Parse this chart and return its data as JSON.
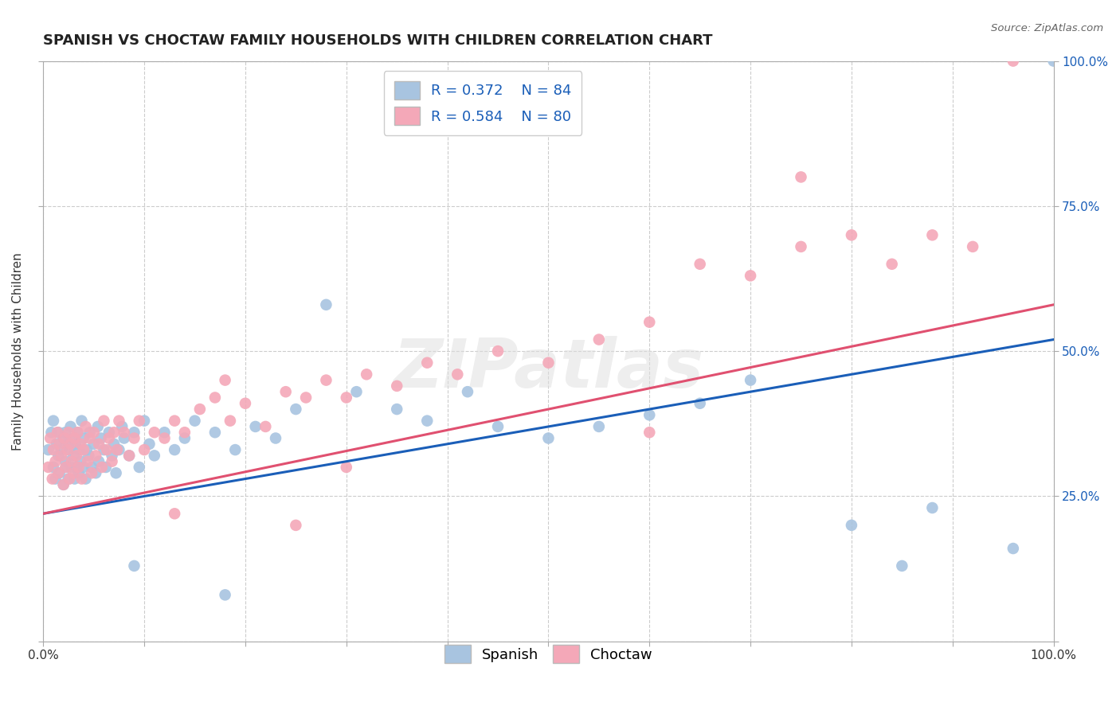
{
  "title": "SPANISH VS CHOCTAW FAMILY HOUSEHOLDS WITH CHILDREN CORRELATION CHART",
  "source": "Source: ZipAtlas.com",
  "watermark": "ZIPatlas",
  "ylabel": "Family Households with Children",
  "xlim": [
    0.0,
    1.0
  ],
  "ylim": [
    0.0,
    1.0
  ],
  "xticks": [
    0.0,
    0.1,
    0.2,
    0.3,
    0.4,
    0.5,
    0.6,
    0.7,
    0.8,
    0.9,
    1.0
  ],
  "yticks": [
    0.0,
    0.25,
    0.5,
    0.75,
    1.0
  ],
  "xtick_labels": [
    "0.0%",
    "",
    "",
    "",
    "",
    "",
    "",
    "",
    "",
    "",
    "100.0%"
  ],
  "ytick_labels_right": [
    "",
    "25.0%",
    "50.0%",
    "75.0%",
    "100.0%"
  ],
  "spanish_R": 0.372,
  "spanish_N": 84,
  "choctaw_R": 0.584,
  "choctaw_N": 80,
  "spanish_color": "#a8c4e0",
  "choctaw_color": "#f4a8b8",
  "spanish_line_color": "#1a5eb8",
  "choctaw_line_color": "#e05070",
  "background_color": "#ffffff",
  "grid_color": "#cccccc",
  "title_fontsize": 13,
  "axis_label_fontsize": 11,
  "tick_fontsize": 11,
  "legend_fontsize": 13,
  "spanish_line_x0": 0.0,
  "spanish_line_y0": 0.22,
  "spanish_line_x1": 1.0,
  "spanish_line_y1": 0.52,
  "choctaw_line_x0": 0.0,
  "choctaw_line_y0": 0.22,
  "choctaw_line_x1": 1.0,
  "choctaw_line_y1": 0.58,
  "spanish_x": [
    0.005,
    0.008,
    0.01,
    0.01,
    0.012,
    0.013,
    0.015,
    0.015,
    0.016,
    0.018,
    0.02,
    0.02,
    0.022,
    0.022,
    0.023,
    0.025,
    0.025,
    0.026,
    0.027,
    0.028,
    0.03,
    0.03,
    0.031,
    0.032,
    0.033,
    0.034,
    0.035,
    0.036,
    0.037,
    0.038,
    0.04,
    0.04,
    0.042,
    0.043,
    0.045,
    0.046,
    0.048,
    0.05,
    0.052,
    0.054,
    0.055,
    0.057,
    0.06,
    0.062,
    0.065,
    0.068,
    0.07,
    0.072,
    0.075,
    0.078,
    0.08,
    0.085,
    0.09,
    0.095,
    0.1,
    0.105,
    0.11,
    0.12,
    0.13,
    0.14,
    0.15,
    0.17,
    0.19,
    0.21,
    0.23,
    0.25,
    0.28,
    0.31,
    0.35,
    0.38,
    0.42,
    0.45,
    0.5,
    0.55,
    0.6,
    0.65,
    0.7,
    0.18,
    0.09,
    0.8,
    0.85,
    0.88,
    0.96,
    1.0
  ],
  "spanish_y": [
    0.33,
    0.36,
    0.3,
    0.38,
    0.28,
    0.34,
    0.32,
    0.36,
    0.29,
    0.33,
    0.27,
    0.35,
    0.31,
    0.36,
    0.3,
    0.34,
    0.28,
    0.33,
    0.37,
    0.3,
    0.32,
    0.35,
    0.28,
    0.34,
    0.3,
    0.36,
    0.29,
    0.33,
    0.31,
    0.38,
    0.3,
    0.35,
    0.28,
    0.33,
    0.32,
    0.36,
    0.3,
    0.34,
    0.29,
    0.37,
    0.31,
    0.35,
    0.33,
    0.3,
    0.36,
    0.32,
    0.34,
    0.29,
    0.33,
    0.37,
    0.35,
    0.32,
    0.36,
    0.3,
    0.38,
    0.34,
    0.32,
    0.36,
    0.33,
    0.35,
    0.38,
    0.36,
    0.33,
    0.37,
    0.35,
    0.4,
    0.58,
    0.43,
    0.4,
    0.38,
    0.43,
    0.37,
    0.35,
    0.37,
    0.39,
    0.41,
    0.45,
    0.08,
    0.13,
    0.2,
    0.13,
    0.23,
    0.16,
    1.0
  ],
  "choctaw_x": [
    0.005,
    0.007,
    0.009,
    0.01,
    0.012,
    0.014,
    0.015,
    0.016,
    0.018,
    0.02,
    0.021,
    0.022,
    0.024,
    0.025,
    0.026,
    0.027,
    0.028,
    0.03,
    0.031,
    0.033,
    0.034,
    0.035,
    0.037,
    0.038,
    0.04,
    0.042,
    0.044,
    0.046,
    0.048,
    0.05,
    0.052,
    0.055,
    0.058,
    0.06,
    0.063,
    0.065,
    0.068,
    0.07,
    0.073,
    0.075,
    0.08,
    0.085,
    0.09,
    0.095,
    0.1,
    0.11,
    0.12,
    0.13,
    0.14,
    0.155,
    0.17,
    0.185,
    0.2,
    0.22,
    0.24,
    0.26,
    0.28,
    0.3,
    0.32,
    0.35,
    0.38,
    0.41,
    0.45,
    0.5,
    0.55,
    0.6,
    0.65,
    0.7,
    0.75,
    0.8,
    0.84,
    0.88,
    0.92,
    0.96,
    0.25,
    0.3,
    0.18,
    0.13,
    0.6,
    0.75
  ],
  "choctaw_y": [
    0.3,
    0.35,
    0.28,
    0.33,
    0.31,
    0.36,
    0.29,
    0.34,
    0.32,
    0.27,
    0.35,
    0.3,
    0.33,
    0.36,
    0.28,
    0.34,
    0.31,
    0.29,
    0.35,
    0.32,
    0.36,
    0.3,
    0.34,
    0.28,
    0.33,
    0.37,
    0.31,
    0.35,
    0.29,
    0.36,
    0.32,
    0.34,
    0.3,
    0.38,
    0.33,
    0.35,
    0.31,
    0.36,
    0.33,
    0.38,
    0.36,
    0.32,
    0.35,
    0.38,
    0.33,
    0.36,
    0.35,
    0.38,
    0.36,
    0.4,
    0.42,
    0.38,
    0.41,
    0.37,
    0.43,
    0.42,
    0.45,
    0.42,
    0.46,
    0.44,
    0.48,
    0.46,
    0.5,
    0.48,
    0.52,
    0.55,
    0.65,
    0.63,
    0.68,
    0.7,
    0.65,
    0.7,
    0.68,
    1.0,
    0.2,
    0.3,
    0.45,
    0.22,
    0.36,
    0.8
  ]
}
